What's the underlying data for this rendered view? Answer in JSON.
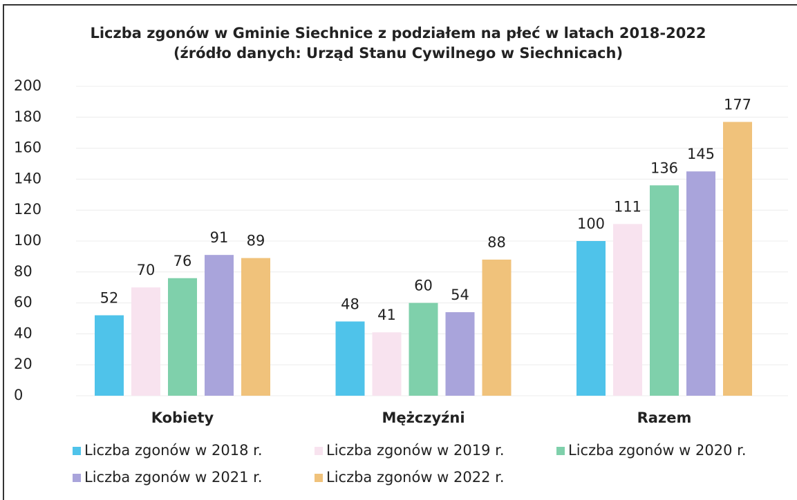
{
  "chart_data": {
    "type": "bar",
    "title": "Liczba zgonów w Gminie Siechnice z podziałem na płeć w latach 2018-2022 (źródło danych: Urząd Stanu Cywilnego w Siechnicach)",
    "categories": [
      "Kobiety",
      "Mężczyźni",
      "Razem"
    ],
    "series": [
      {
        "name": "Liczba zgonów w 2018 r.",
        "color": "#4fc3ea",
        "values": [
          52,
          48,
          100
        ]
      },
      {
        "name": "Liczba zgonów w 2019 r.",
        "color": "#f8e3ef",
        "values": [
          70,
          41,
          111
        ]
      },
      {
        "name": "Liczba zgonów w 2020 r.",
        "color": "#7fd0ab",
        "values": [
          76,
          60,
          136
        ]
      },
      {
        "name": "Liczba zgonów w 2021 r.",
        "color": "#a9a4db",
        "values": [
          91,
          54,
          145
        ]
      },
      {
        "name": "Liczba zgonów w 2022 r.",
        "color": "#f0c27b",
        "values": [
          89,
          88,
          177
        ]
      }
    ],
    "ylim": [
      0,
      200
    ],
    "yticks": [
      0,
      20,
      40,
      60,
      80,
      100,
      120,
      140,
      160,
      180,
      200
    ],
    "grid": true,
    "legend": "bottom"
  }
}
